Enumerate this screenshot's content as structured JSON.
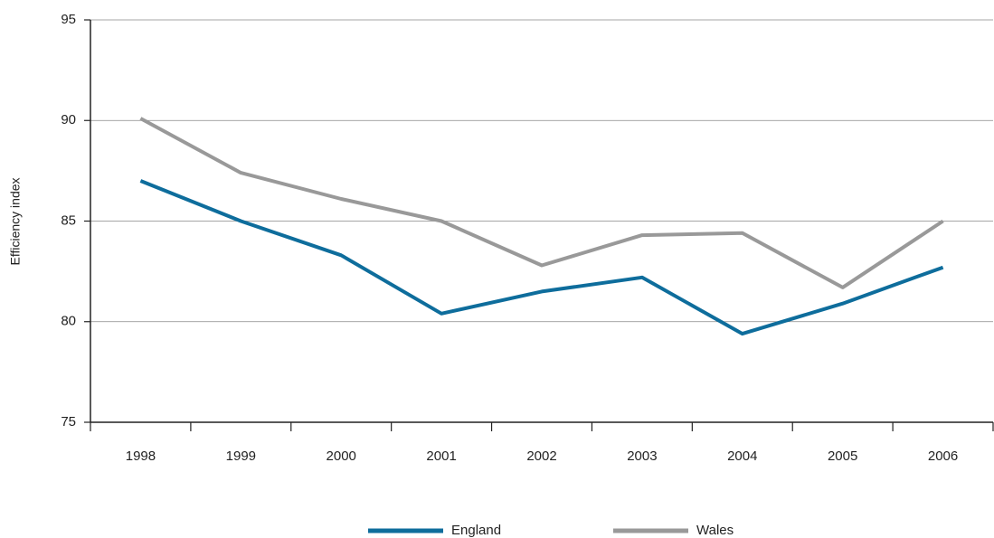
{
  "chart_data": {
    "type": "line",
    "y_label": "Efficiency index",
    "categories": [
      "1998",
      "1999",
      "2000",
      "2001",
      "2002",
      "2003",
      "2004",
      "2005",
      "2006"
    ],
    "series": [
      {
        "name": "England",
        "color": "#0e6d9c",
        "values": [
          87.0,
          85.0,
          83.3,
          80.4,
          81.5,
          82.2,
          79.4,
          80.9,
          82.7
        ]
      },
      {
        "name": "Wales",
        "color": "#999999",
        "values": [
          90.1,
          87.4,
          86.1,
          85.0,
          82.8,
          84.3,
          84.4,
          81.7,
          85.0
        ]
      }
    ],
    "ylim": [
      75,
      95
    ],
    "yticks": [
      75,
      80,
      85,
      90,
      95
    ],
    "grid": true,
    "legend": "bottom"
  }
}
